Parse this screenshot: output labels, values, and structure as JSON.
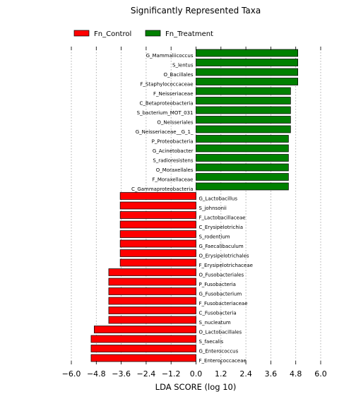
{
  "chart_data": {
    "type": "bar",
    "orientation": "horizontal",
    "title": "Significantly Represented Taxa",
    "xlabel": "LDA SCORE (log 10)",
    "ylabel": "",
    "xlim": [
      -6.0,
      6.0
    ],
    "xticks": [
      "−6.0",
      "−4.8",
      "−3.6",
      "−2.4",
      "−1.2",
      "0.0",
      "1.2",
      "2.4",
      "3.6",
      "4.8",
      "6.0"
    ],
    "xtick_values": [
      -6.0,
      -4.8,
      -3.6,
      -2.4,
      -1.2,
      0.0,
      1.2,
      2.4,
      3.6,
      4.8,
      6.0
    ],
    "grid": "vertical-dotted",
    "legend_position": "top-left",
    "series": [
      {
        "name": "Fn_Control",
        "color": "#ff0000"
      },
      {
        "name": "Fn_Treatment",
        "color": "#008000"
      }
    ],
    "bars": [
      {
        "label": "G_Mammaliicoccus",
        "value": 4.9,
        "group": "Fn_Treatment"
      },
      {
        "label": "S_lentus",
        "value": 4.9,
        "group": "Fn_Treatment"
      },
      {
        "label": "O_Bacillales",
        "value": 4.9,
        "group": "Fn_Treatment"
      },
      {
        "label": "F_Staphylococcaceae",
        "value": 4.9,
        "group": "Fn_Treatment"
      },
      {
        "label": "F_Neisseriaceae",
        "value": 4.55,
        "group": "Fn_Treatment"
      },
      {
        "label": "C_Betaproteobacteria",
        "value": 4.55,
        "group": "Fn_Treatment"
      },
      {
        "label": "S_bacterium_MOT_031",
        "value": 4.55,
        "group": "Fn_Treatment"
      },
      {
        "label": "O_Neisseriales",
        "value": 4.55,
        "group": "Fn_Treatment"
      },
      {
        "label": "G_Neisseriaceae__G_1_",
        "value": 4.55,
        "group": "Fn_Treatment"
      },
      {
        "label": "P_Proteobacteria",
        "value": 4.45,
        "group": "Fn_Treatment"
      },
      {
        "label": "G_Acinetobacter",
        "value": 4.45,
        "group": "Fn_Treatment"
      },
      {
        "label": "S_radioresistens",
        "value": 4.45,
        "group": "Fn_Treatment"
      },
      {
        "label": "O_Moraxellales",
        "value": 4.45,
        "group": "Fn_Treatment"
      },
      {
        "label": "F_Moraxellaceae",
        "value": 4.45,
        "group": "Fn_Treatment"
      },
      {
        "label": "C_Gammaproteobacteria",
        "value": 4.45,
        "group": "Fn_Treatment"
      },
      {
        "label": "G_Lactobacillus",
        "value": -3.65,
        "group": "Fn_Control"
      },
      {
        "label": "S_johnsonii",
        "value": -3.65,
        "group": "Fn_Control"
      },
      {
        "label": "F_Lactobacillaceae",
        "value": -3.65,
        "group": "Fn_Control"
      },
      {
        "label": "C_Erysipelotrichia",
        "value": -3.65,
        "group": "Fn_Control"
      },
      {
        "label": "S_rodentium",
        "value": -3.65,
        "group": "Fn_Control"
      },
      {
        "label": "G_Faecalibaculum",
        "value": -3.65,
        "group": "Fn_Control"
      },
      {
        "label": "O_Erysipelotrichales",
        "value": -3.65,
        "group": "Fn_Control"
      },
      {
        "label": "F_Erysipelotrichaceae",
        "value": -3.65,
        "group": "Fn_Control"
      },
      {
        "label": "O_Fusobacteriales",
        "value": -4.2,
        "group": "Fn_Control"
      },
      {
        "label": "P_Fusobacteria",
        "value": -4.2,
        "group": "Fn_Control"
      },
      {
        "label": "G_Fusobacterium",
        "value": -4.2,
        "group": "Fn_Control"
      },
      {
        "label": "F_Fusobacteriaceae",
        "value": -4.2,
        "group": "Fn_Control"
      },
      {
        "label": "C_Fusobacteria",
        "value": -4.2,
        "group": "Fn_Control"
      },
      {
        "label": "S_nucleatum",
        "value": -4.2,
        "group": "Fn_Control"
      },
      {
        "label": "O_Lactobacillales",
        "value": -4.9,
        "group": "Fn_Control"
      },
      {
        "label": "S_faecalis",
        "value": -5.05,
        "group": "Fn_Control"
      },
      {
        "label": "G_Enterococcus",
        "value": -5.05,
        "group": "Fn_Control"
      },
      {
        "label": "F_Enterococcaceae",
        "value": -5.05,
        "group": "Fn_Control"
      }
    ]
  }
}
